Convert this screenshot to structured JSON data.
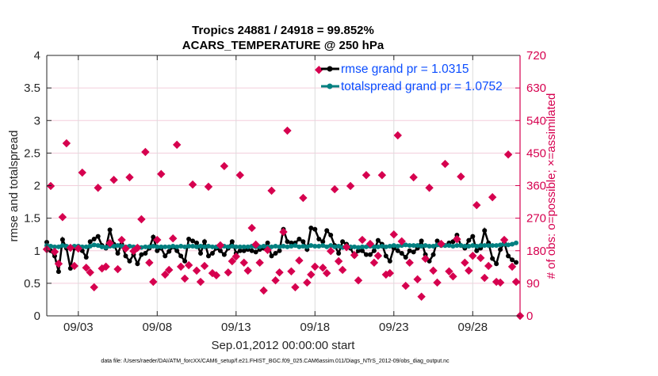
{
  "chart_data": {
    "type": "line",
    "title": [
      "Tropics 24881 / 24918 = 99.852%",
      "ACARS_TEMPERATURE @ 250 hPa"
    ],
    "xlabel": "Sep.01,2012 00:00:00 start",
    "ylabel": "rmse and totalspread",
    "ylabel_right": "# of obs: o=possible; ×=assimilated",
    "footnote": "data file: /Users/raeder/DAI/ATM_forcXX/CAM6_setup/f.e21.FHIST_BGC.f09_025.CAM6assim.011/Diags_NTrS_2012-09/obs_diag_output.nc",
    "x_start": "2012-09-01 00:00",
    "x_interval_hours": 6,
    "xlim": [
      "2012-09-01",
      "2012-10-01"
    ],
    "x_ticks": [
      {
        "label": "09/03",
        "date": "2012-09-03"
      },
      {
        "label": "09/08",
        "date": "2012-09-08"
      },
      {
        "label": "09/13",
        "date": "2012-09-13"
      },
      {
        "label": "09/18",
        "date": "2012-09-18"
      },
      {
        "label": "09/23",
        "date": "2012-09-23"
      },
      {
        "label": "09/28",
        "date": "2012-09-28"
      }
    ],
    "ylim": [
      0,
      4
    ],
    "y_ticks": [
      "0",
      "0.5",
      "1",
      "1.5",
      "2",
      "2.5",
      "3",
      "3.5",
      "4"
    ],
    "ylim_right": [
      0,
      720
    ],
    "y_ticks_right": [
      "0",
      "90",
      "180",
      "270",
      "360",
      "450",
      "540",
      "630",
      "720"
    ],
    "grid": true,
    "legend_placement": "top-right",
    "colors": {
      "rmse": "#000000",
      "totalspread": "#008080",
      "obs": "#d6004f",
      "legend_text": "#0b4dff",
      "right_axis": "#d6004f"
    },
    "series": [
      {
        "name": "rmse grand pr = 1.0315",
        "axis": "left",
        "marker": "circle",
        "values": [
          1.13,
          1.0,
          0.92,
          0.68,
          1.17,
          1.04,
          0.73,
          1.04,
          1.06,
          1.0,
          0.9,
          1.14,
          1.18,
          1.22,
          1.08,
          1.04,
          1.32,
          1.1,
          0.96,
          1.1,
          0.92,
          0.84,
          0.94,
          0.8,
          0.94,
          0.96,
          1.04,
          1.21,
          1.0,
          1.04,
          0.92,
          0.99,
          1.06,
          1.0,
          0.92,
          0.84,
          1.18,
          1.15,
          1.12,
          0.96,
          1.14,
          0.92,
          0.96,
          1.04,
          1.0,
          0.94,
          1.04,
          1.14,
          0.96,
          1.0,
          1.0,
          1.02,
          1.0,
          0.98,
          1.02,
          1.04,
          1.12,
          0.92,
          0.96,
          1.0,
          1.33,
          1.14,
          1.12,
          1.12,
          1.18,
          1.14,
          1.02,
          1.35,
          1.33,
          1.18,
          1.14,
          1.31,
          1.24,
          1.08,
          0.96,
          1.14,
          1.1,
          1.04,
          0.92,
          1.0,
          1.0,
          0.94,
          0.94,
          1.0,
          1.16,
          1.1,
          0.92,
          0.84,
          1.04,
          1.0,
          0.96,
          0.9,
          1.0,
          0.98,
          1.04,
          1.15,
          0.94,
          0.84,
          0.94,
          1.15,
          1.08,
          1.08,
          1.12,
          1.14,
          1.24,
          1.08,
          1.04,
          1.16,
          1.22,
          1.0,
          1.04,
          1.31,
          1.12,
          0.88,
          0.8,
          1.02,
          1.12,
          0.92,
          0.86,
          0.82,
          null
        ]
      },
      {
        "name": "totalspread grand pr = 1.0752",
        "axis": "left",
        "marker": "circle",
        "values": [
          1.08,
          1.07,
          1.06,
          1.06,
          1.08,
          1.07,
          1.06,
          1.07,
          1.07,
          1.06,
          1.06,
          1.07,
          1.09,
          1.08,
          1.06,
          1.05,
          1.07,
          1.07,
          1.08,
          1.07,
          1.06,
          1.07,
          1.06,
          1.06,
          1.05,
          1.06,
          1.06,
          1.07,
          1.06,
          1.06,
          1.06,
          1.06,
          1.07,
          1.06,
          1.07,
          1.06,
          1.07,
          1.07,
          1.06,
          1.07,
          1.06,
          1.07,
          1.06,
          1.06,
          1.06,
          1.07,
          1.06,
          1.07,
          1.06,
          1.06,
          1.06,
          1.06,
          1.07,
          1.06,
          1.06,
          1.07,
          1.06,
          1.06,
          1.07,
          1.06,
          1.07,
          1.06,
          1.07,
          1.08,
          1.06,
          1.07,
          1.06,
          1.08,
          1.07,
          1.07,
          1.08,
          1.06,
          1.08,
          1.06,
          1.07,
          1.05,
          1.06,
          1.06,
          1.06,
          1.05,
          1.06,
          1.06,
          1.07,
          1.06,
          1.06,
          1.07,
          1.06,
          1.07,
          1.08,
          1.07,
          1.08,
          1.09,
          1.08,
          1.08,
          1.08,
          1.07,
          1.08,
          1.07,
          1.07,
          1.09,
          1.08,
          1.08,
          1.08,
          1.07,
          1.08,
          1.08,
          1.07,
          1.07,
          1.08,
          1.07,
          1.08,
          1.08,
          1.08,
          1.08,
          1.08,
          1.09,
          1.1,
          1.09,
          1.1,
          1.12,
          null
        ]
      },
      {
        "name": "# of obs",
        "axis": "right",
        "marker": "diamond",
        "values": [
          184,
          359,
          177,
          144,
          273,
          477,
          188,
          138,
          186,
          396,
          133,
          120,
          79,
          354,
          131,
          136,
          201,
          376,
          129,
          210,
          186,
          383,
          179,
          188,
          267,
          453,
          147,
          94,
          210,
          392,
          114,
          127,
          214,
          473,
          136,
          103,
          140,
          363,
          125,
          94,
          138,
          357,
          118,
          112,
          195,
          414,
          120,
          151,
          164,
          389,
          147,
          125,
          243,
          197,
          147,
          70,
          182,
          346,
          98,
          120,
          232,
          512,
          123,
          79,
          153,
          326,
          92,
          114,
          136,
          680,
          133,
          118,
          179,
          350,
          151,
          127,
          190,
          359,
          168,
          98,
          210,
          389,
          199,
          147,
          166,
          389,
          114,
          118,
          225,
          499,
          206,
          83,
          147,
          383,
          101,
          53,
          158,
          354,
          125,
          92,
          199,
          420,
          123,
          109,
          212,
          385,
          147,
          125,
          166,
          306,
          160,
          105,
          138,
          328,
          94,
          92,
          210,
          446,
          136,
          94,
          0
        ]
      }
    ]
  }
}
